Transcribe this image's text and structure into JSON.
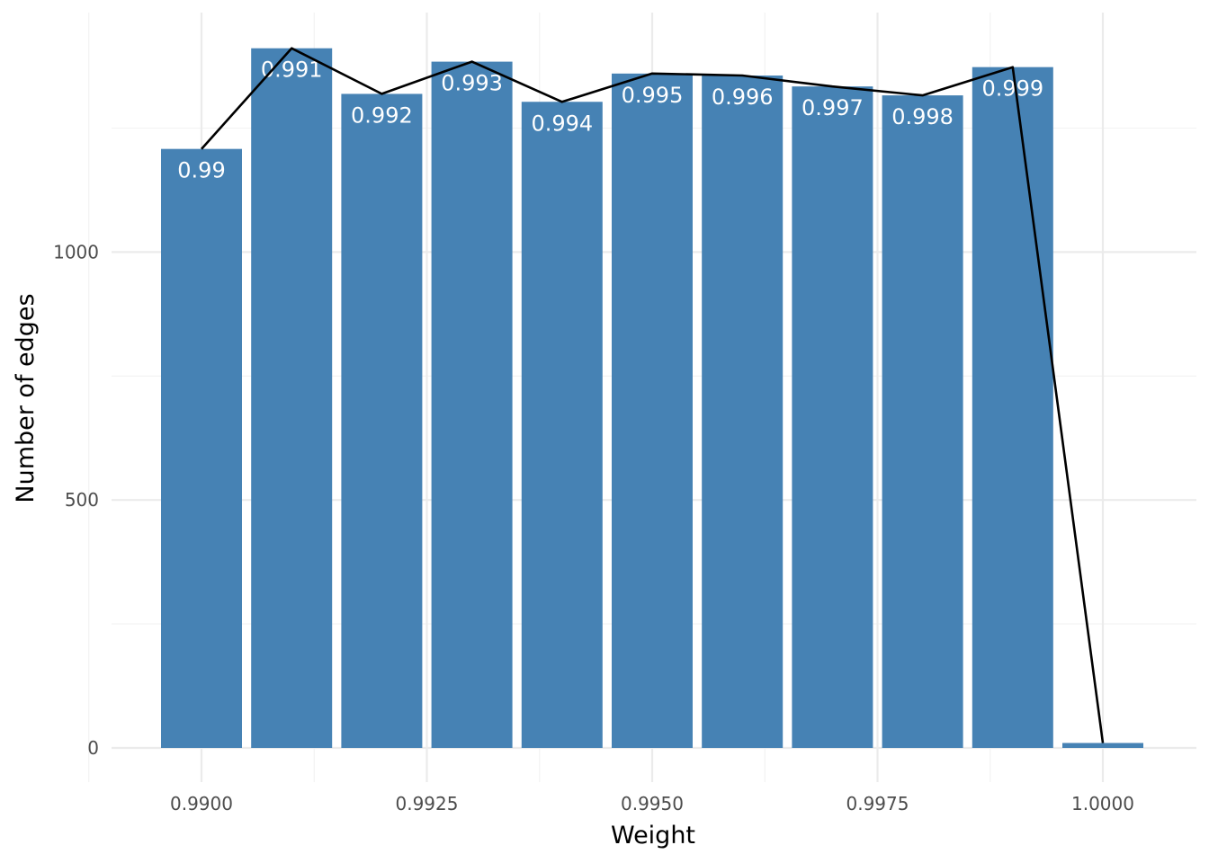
{
  "chart_data": {
    "type": "bar",
    "xlabel": "Weight",
    "ylabel": "Number of edges",
    "x_ticks": [
      "0.9900",
      "0.9925",
      "0.9950",
      "0.9975",
      "1.0000"
    ],
    "y_ticks": [
      "0",
      "500",
      "1000"
    ],
    "x": [
      0.99,
      0.991,
      0.992,
      0.993,
      0.994,
      0.995,
      0.996,
      0.997,
      0.998,
      0.999,
      1.0
    ],
    "values": [
      1208,
      1411,
      1319,
      1384,
      1303,
      1360,
      1356,
      1334,
      1316,
      1373,
      10
    ],
    "bar_labels": [
      "0.99",
      "0.991",
      "0.992",
      "0.993",
      "0.994",
      "0.995",
      "0.996",
      "0.997",
      "0.998",
      "0.999",
      ""
    ],
    "xlim": [
      0.989,
      1.001
    ],
    "ylim": [
      -50,
      1480
    ],
    "grid": true,
    "bar_color": "#4682b4",
    "line_color": "#000000",
    "overlay": "line connecting bar tops"
  }
}
